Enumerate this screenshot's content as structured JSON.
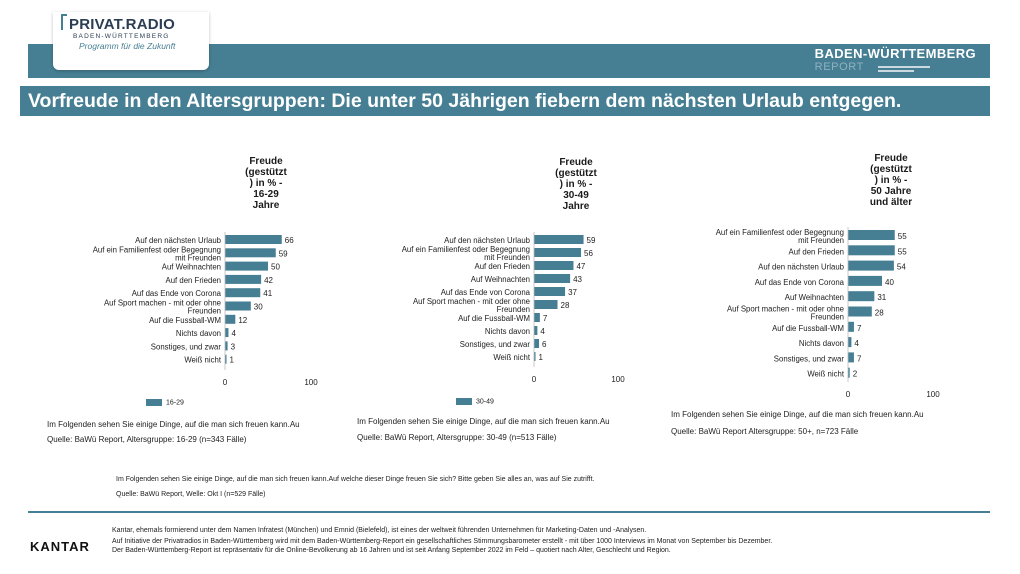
{
  "brand": {
    "logo_title": "PRIVAT.RADIO",
    "logo_sub": "BADEN-WÜRTTEMBERG",
    "logo_tag": "Programm für die Zukunft",
    "report_line1": "BADEN-WÜRTTEMBERG",
    "report_line2": "REPORT"
  },
  "headline": "Vorfreude in den Altersgruppen: Die unter 50 Jährigen fiebern dem nächsten Urlaub entgegen.",
  "chart_data": [
    {
      "type": "bar",
      "orientation": "horizontal",
      "title": "Freude (gestützt ) in % - 16-29 Jahre",
      "categories": [
        "Auf den nächsten Urlaub",
        "Auf ein Familienfest oder Begegnung mit Freunden",
        "Auf Weihnachten",
        "Auf den Frieden",
        "Auf das Ende von Corona",
        "Auf Sport machen - mit oder ohne Freunden",
        "Auf die Fussball-WM",
        "Nichts davon",
        "Sonstiges, und zwar",
        "Weiß nicht"
      ],
      "values": [
        66,
        59,
        50,
        42,
        41,
        30,
        12,
        4,
        3,
        1
      ],
      "series_name": "16-29",
      "xlim": [
        0,
        100
      ],
      "xticks": [
        "0",
        "100"
      ],
      "color": "#467f93",
      "question": "Im Folgenden sehen Sie einige Dinge, auf die man sich freuen kann.Au",
      "source": "Quelle: BaWü Report, Altersgruppe: 16-29 (n=343 Fälle)"
    },
    {
      "type": "bar",
      "orientation": "horizontal",
      "title": "Freude (gestützt ) in % - 30-49 Jahre",
      "categories": [
        "Auf den nächsten Urlaub",
        "Auf ein Familienfest oder Begegnung mit Freunden",
        "Auf den Frieden",
        "Auf Weihnachten",
        "Auf das Ende von Corona",
        "Auf Sport machen - mit oder ohne Freunden",
        "Auf die Fussball-WM",
        "Nichts davon",
        "Sonstiges, und zwar",
        "Weiß nicht"
      ],
      "values": [
        59,
        56,
        47,
        43,
        37,
        28,
        7,
        4,
        6,
        1
      ],
      "series_name": "30-49",
      "xlim": [
        0,
        100
      ],
      "xticks": [
        "0",
        "100"
      ],
      "color": "#467f93",
      "question": "Im Folgenden sehen Sie einige Dinge, auf die man sich freuen kann.Au",
      "source": "Quelle: BaWü Report, Altersgruppe: 30-49 (n=513 Fälle)"
    },
    {
      "type": "bar",
      "orientation": "horizontal",
      "title": "Freude (gestützt ) in % - 50 Jahre und älter",
      "categories": [
        "Auf ein Familienfest oder Begegnung mit Freunden",
        "Auf den Frieden",
        "Auf den nächsten Urlaub",
        "Auf das Ende von Corona",
        "Auf Weihnachten",
        "Auf Sport machen - mit oder ohne Freunden",
        "Auf die Fussball-WM",
        "Nichts davon",
        "Sonstiges, und zwar",
        "Weiß nicht"
      ],
      "values": [
        55,
        55,
        54,
        40,
        31,
        28,
        7,
        4,
        7,
        2
      ],
      "series_name": "",
      "xlim": [
        0,
        100
      ],
      "xticks": [
        "0",
        "100"
      ],
      "color": "#467f93",
      "question": "Im Folgenden sehen Sie einige Dinge, auf die man sich freuen kann.Au",
      "source": "Quelle: BaWü Report Altersgruppe: 50+, n=723 Fälle"
    }
  ],
  "chart_titles": [
    [
      "Freude",
      "(gestützt",
      ") in % -",
      "16-29",
      "Jahre"
    ],
    [
      "Freude",
      "(gestützt",
      ") in % -",
      "30-49",
      "Jahre"
    ],
    [
      "Freude",
      "(gestützt",
      ") in % -",
      "50 Jahre",
      "und älter"
    ]
  ],
  "general_note": {
    "question": "Im Folgenden sehen Sie einige Dinge, auf die man sich freuen kann.Auf welche dieser Dinge freuen Sie sich? Bitte geben Sie alles an, was auf Sie zutrifft.",
    "source": "Quelle: BaWü Report, Welle: Okt I (n=529 Fälle)"
  },
  "footer": {
    "kantar": "KANTAR",
    "line1": "Kantar, ehemals formierend unter dem Namen Infratest (München) und Emnid (Bielefeld), ist eines der weltweit führenden Unternehmen für Marketing-Daten und -Analysen.",
    "line2": "Auf Initiative der Privatradios in Baden-Württemberg wird mit dem Baden-Württemberg-Report ein gesellschaftliches Stimmungsbarometer erstellt - mit über 1000 Interviews im Monat von September bis Dezember.",
    "line3": "Der Baden-Württemberg-Report ist repräsentativ für die Online-Bevölkerung ab 16 Jahren und ist seit Anfang September 2022 im Feld – quotiert nach Alter, Geschlecht und Region."
  }
}
